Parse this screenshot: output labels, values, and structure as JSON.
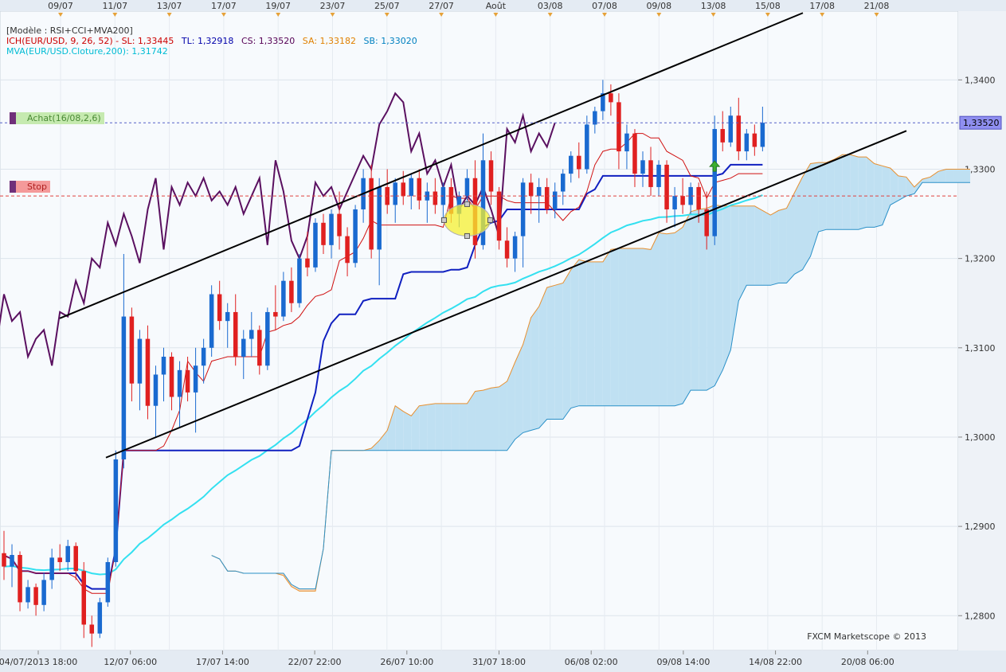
{
  "chart_data": {
    "type": "candlestick",
    "instrument": "EUR/USD",
    "legend": {
      "model": "[Modèle : RSI+CCI+MVA200]",
      "ichimoku": {
        "label": "ICH(EUR/USD, 9, 26, 52) -",
        "sl": "SL: 1,33445",
        "tl": "TL: 1,32918",
        "cs": "CS: 1,33520",
        "sa": "SA: 1,33182",
        "sb": "SB: 1,33020"
      },
      "mva": "MVA(EUR/USD.Cloture,200): 1,31742"
    },
    "top_axis": [
      "09/07",
      "11/07",
      "13/07",
      "17/07",
      "19/07",
      "23/07",
      "25/07",
      "27/07",
      "Août",
      "03/08",
      "07/08",
      "09/08",
      "13/08",
      "15/08",
      "17/08",
      "21/08"
    ],
    "bottom_axis": [
      "04/07/2013 18:00",
      "12/07 06:00",
      "17/07 14:00",
      "22/07 22:00",
      "26/07 10:00",
      "31/07 18:00",
      "06/08 02:00",
      "09/08 14:00",
      "14/08 22:00",
      "20/08 06:00"
    ],
    "y_ticks": [
      "1,3400",
      "1,3300",
      "1,3200",
      "1,3100",
      "1,3000",
      "1,2900",
      "1,2800"
    ],
    "y_values": [
      1.34,
      1.33,
      1.32,
      1.31,
      1.3,
      1.29,
      1.28
    ],
    "ylim": [
      1.2761,
      1.3477
    ],
    "last_price": 1.3352,
    "last_price_label": "1,33520",
    "buy_signal": {
      "label": "Achat(16/08,2,6)",
      "price": 1.3352
    },
    "stop_signal": {
      "label": "Stop",
      "price": 1.327
    },
    "candles": [
      {
        "o": 1.287,
        "h": 1.2895,
        "l": 1.284,
        "c": 1.2855
      },
      {
        "o": 1.2855,
        "h": 1.288,
        "l": 1.2832,
        "c": 1.2868
      },
      {
        "o": 1.2868,
        "h": 1.2872,
        "l": 1.2805,
        "c": 1.2815
      },
      {
        "o": 1.2815,
        "h": 1.284,
        "l": 1.2808,
        "c": 1.2832
      },
      {
        "o": 1.2832,
        "h": 1.2836,
        "l": 1.28,
        "c": 1.2812
      },
      {
        "o": 1.2812,
        "h": 1.2848,
        "l": 1.2805,
        "c": 1.284
      },
      {
        "o": 1.284,
        "h": 1.2875,
        "l": 1.283,
        "c": 1.2865
      },
      {
        "o": 1.2865,
        "h": 1.288,
        "l": 1.285,
        "c": 1.286
      },
      {
        "o": 1.286,
        "h": 1.2885,
        "l": 1.285,
        "c": 1.2878
      },
      {
        "o": 1.2878,
        "h": 1.2882,
        "l": 1.284,
        "c": 1.285
      },
      {
        "o": 1.285,
        "h": 1.286,
        "l": 1.2775,
        "c": 1.279
      },
      {
        "o": 1.279,
        "h": 1.28,
        "l": 1.2765,
        "c": 1.278
      },
      {
        "o": 1.278,
        "h": 1.282,
        "l": 1.2775,
        "c": 1.2815
      },
      {
        "o": 1.2815,
        "h": 1.2865,
        "l": 1.281,
        "c": 1.286
      },
      {
        "o": 1.286,
        "h": 1.2985,
        "l": 1.2855,
        "c": 1.2975
      },
      {
        "o": 1.2975,
        "h": 1.3205,
        "l": 1.2965,
        "c": 1.3135
      },
      {
        "o": 1.3135,
        "h": 1.3145,
        "l": 1.304,
        "c": 1.306
      },
      {
        "o": 1.306,
        "h": 1.312,
        "l": 1.303,
        "c": 1.311
      },
      {
        "o": 1.311,
        "h": 1.3125,
        "l": 1.302,
        "c": 1.3035
      },
      {
        "o": 1.3035,
        "h": 1.308,
        "l": 1.3,
        "c": 1.307
      },
      {
        "o": 1.307,
        "h": 1.31,
        "l": 1.304,
        "c": 1.309
      },
      {
        "o": 1.309,
        "h": 1.3095,
        "l": 1.303,
        "c": 1.3045
      },
      {
        "o": 1.3045,
        "h": 1.3085,
        "l": 1.301,
        "c": 1.3075
      },
      {
        "o": 1.3075,
        "h": 1.309,
        "l": 1.304,
        "c": 1.305
      },
      {
        "o": 1.305,
        "h": 1.31,
        "l": 1.3005,
        "c": 1.308
      },
      {
        "o": 1.308,
        "h": 1.311,
        "l": 1.306,
        "c": 1.31
      },
      {
        "o": 1.31,
        "h": 1.317,
        "l": 1.309,
        "c": 1.316
      },
      {
        "o": 1.316,
        "h": 1.3175,
        "l": 1.312,
        "c": 1.313
      },
      {
        "o": 1.313,
        "h": 1.315,
        "l": 1.31,
        "c": 1.314
      },
      {
        "o": 1.314,
        "h": 1.316,
        "l": 1.308,
        "c": 1.309
      },
      {
        "o": 1.309,
        "h": 1.312,
        "l": 1.3065,
        "c": 1.311
      },
      {
        "o": 1.311,
        "h": 1.314,
        "l": 1.309,
        "c": 1.312
      },
      {
        "o": 1.312,
        "h": 1.3125,
        "l": 1.307,
        "c": 1.308
      },
      {
        "o": 1.308,
        "h": 1.3145,
        "l": 1.3075,
        "c": 1.314
      },
      {
        "o": 1.314,
        "h": 1.317,
        "l": 1.312,
        "c": 1.3135
      },
      {
        "o": 1.3135,
        "h": 1.3185,
        "l": 1.313,
        "c": 1.3175
      },
      {
        "o": 1.3175,
        "h": 1.319,
        "l": 1.314,
        "c": 1.315
      },
      {
        "o": 1.315,
        "h": 1.3205,
        "l": 1.3145,
        "c": 1.32
      },
      {
        "o": 1.32,
        "h": 1.323,
        "l": 1.318,
        "c": 1.319
      },
      {
        "o": 1.319,
        "h": 1.3245,
        "l": 1.3185,
        "c": 1.324
      },
      {
        "o": 1.324,
        "h": 1.325,
        "l": 1.3205,
        "c": 1.3215
      },
      {
        "o": 1.3215,
        "h": 1.3255,
        "l": 1.32,
        "c": 1.325
      },
      {
        "o": 1.325,
        "h": 1.3275,
        "l": 1.321,
        "c": 1.3225
      },
      {
        "o": 1.3225,
        "h": 1.3235,
        "l": 1.318,
        "c": 1.3195
      },
      {
        "o": 1.3195,
        "h": 1.326,
        "l": 1.319,
        "c": 1.3255
      },
      {
        "o": 1.3255,
        "h": 1.33,
        "l": 1.324,
        "c": 1.329
      },
      {
        "o": 1.329,
        "h": 1.3305,
        "l": 1.32,
        "c": 1.321
      },
      {
        "o": 1.321,
        "h": 1.329,
        "l": 1.317,
        "c": 1.328
      },
      {
        "o": 1.328,
        "h": 1.33,
        "l": 1.325,
        "c": 1.326
      },
      {
        "o": 1.326,
        "h": 1.329,
        "l": 1.324,
        "c": 1.3285
      },
      {
        "o": 1.3285,
        "h": 1.3298,
        "l": 1.326,
        "c": 1.327
      },
      {
        "o": 1.327,
        "h": 1.3295,
        "l": 1.3255,
        "c": 1.329
      },
      {
        "o": 1.329,
        "h": 1.33,
        "l": 1.3255,
        "c": 1.3265
      },
      {
        "o": 1.3265,
        "h": 1.3285,
        "l": 1.324,
        "c": 1.3275
      },
      {
        "o": 1.3275,
        "h": 1.329,
        "l": 1.325,
        "c": 1.326
      },
      {
        "o": 1.326,
        "h": 1.3285,
        "l": 1.3245,
        "c": 1.328
      },
      {
        "o": 1.328,
        "h": 1.329,
        "l": 1.324,
        "c": 1.325
      },
      {
        "o": 1.325,
        "h": 1.3275,
        "l": 1.3235,
        "c": 1.327
      },
      {
        "o": 1.327,
        "h": 1.33,
        "l": 1.326,
        "c": 1.329
      },
      {
        "o": 1.329,
        "h": 1.331,
        "l": 1.32,
        "c": 1.3215
      },
      {
        "o": 1.3215,
        "h": 1.334,
        "l": 1.321,
        "c": 1.331
      },
      {
        "o": 1.331,
        "h": 1.332,
        "l": 1.326,
        "c": 1.3275
      },
      {
        "o": 1.3275,
        "h": 1.328,
        "l": 1.321,
        "c": 1.322
      },
      {
        "o": 1.322,
        "h": 1.3235,
        "l": 1.319,
        "c": 1.32
      },
      {
        "o": 1.32,
        "h": 1.323,
        "l": 1.3185,
        "c": 1.3225
      },
      {
        "o": 1.3225,
        "h": 1.329,
        "l": 1.319,
        "c": 1.3285
      },
      {
        "o": 1.3285,
        "h": 1.3295,
        "l": 1.325,
        "c": 1.327
      },
      {
        "o": 1.327,
        "h": 1.329,
        "l": 1.324,
        "c": 1.328
      },
      {
        "o": 1.328,
        "h": 1.329,
        "l": 1.325,
        "c": 1.3255
      },
      {
        "o": 1.3255,
        "h": 1.3285,
        "l": 1.3245,
        "c": 1.3275
      },
      {
        "o": 1.3275,
        "h": 1.33,
        "l": 1.326,
        "c": 1.3295
      },
      {
        "o": 1.3295,
        "h": 1.332,
        "l": 1.3285,
        "c": 1.3315
      },
      {
        "o": 1.3315,
        "h": 1.333,
        "l": 1.329,
        "c": 1.33
      },
      {
        "o": 1.33,
        "h": 1.336,
        "l": 1.3295,
        "c": 1.335
      },
      {
        "o": 1.335,
        "h": 1.337,
        "l": 1.334,
        "c": 1.3365
      },
      {
        "o": 1.3365,
        "h": 1.34,
        "l": 1.3355,
        "c": 1.3385
      },
      {
        "o": 1.3385,
        "h": 1.3395,
        "l": 1.336,
        "c": 1.3375
      },
      {
        "o": 1.3375,
        "h": 1.3385,
        "l": 1.33,
        "c": 1.332
      },
      {
        "o": 1.332,
        "h": 1.335,
        "l": 1.33,
        "c": 1.334
      },
      {
        "o": 1.334,
        "h": 1.3345,
        "l": 1.328,
        "c": 1.3295
      },
      {
        "o": 1.3295,
        "h": 1.332,
        "l": 1.328,
        "c": 1.331
      },
      {
        "o": 1.331,
        "h": 1.3325,
        "l": 1.327,
        "c": 1.328
      },
      {
        "o": 1.328,
        "h": 1.331,
        "l": 1.327,
        "c": 1.3305
      },
      {
        "o": 1.3305,
        "h": 1.331,
        "l": 1.324,
        "c": 1.3255
      },
      {
        "o": 1.3255,
        "h": 1.328,
        "l": 1.3235,
        "c": 1.327
      },
      {
        "o": 1.327,
        "h": 1.329,
        "l": 1.325,
        "c": 1.326
      },
      {
        "o": 1.326,
        "h": 1.3285,
        "l": 1.325,
        "c": 1.328
      },
      {
        "o": 1.328,
        "h": 1.3285,
        "l": 1.324,
        "c": 1.3255
      },
      {
        "o": 1.3255,
        "h": 1.3275,
        "l": 1.321,
        "c": 1.3225
      },
      {
        "o": 1.3225,
        "h": 1.336,
        "l": 1.3215,
        "c": 1.3345
      },
      {
        "o": 1.3345,
        "h": 1.3365,
        "l": 1.332,
        "c": 1.333
      },
      {
        "o": 1.333,
        "h": 1.337,
        "l": 1.3325,
        "c": 1.336
      },
      {
        "o": 1.336,
        "h": 1.338,
        "l": 1.331,
        "c": 1.332
      },
      {
        "o": 1.332,
        "h": 1.3345,
        "l": 1.331,
        "c": 1.334
      },
      {
        "o": 1.334,
        "h": 1.335,
        "l": 1.3315,
        "c": 1.3325
      },
      {
        "o": 1.3325,
        "h": 1.337,
        "l": 1.332,
        "c": 1.3352
      }
    ],
    "channel": {
      "upper": [
        [
          0,
          1.3133
        ],
        [
          120,
          1.3475
        ]
      ],
      "lower": [
        [
          0,
          1.2977
        ],
        [
          120,
          1.3343
        ]
      ]
    },
    "copyright": "FXCM Marketscope © 2013"
  }
}
